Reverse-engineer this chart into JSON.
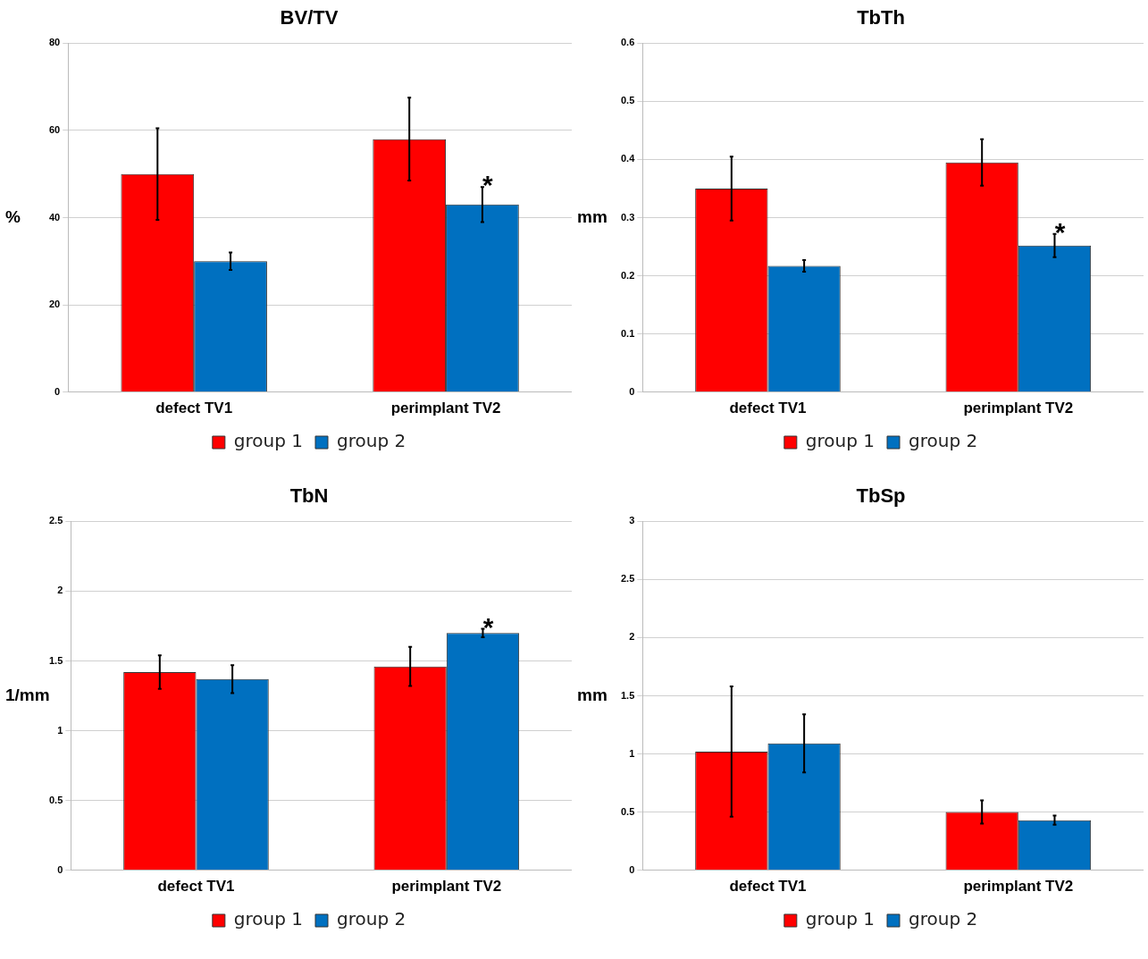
{
  "chart_data": [
    {
      "type": "bar",
      "title": "BV/TV",
      "ylabel": "%",
      "categories": [
        "defect TV1",
        "perimplant TV2"
      ],
      "series": [
        {
          "name": "group 1",
          "color": "#ff0000",
          "values": [
            50,
            58
          ],
          "errors": [
            10.5,
            9.5
          ]
        },
        {
          "name": "group 2",
          "color": "#0070c0",
          "values": [
            30,
            43
          ],
          "errors": [
            2,
            4
          ]
        }
      ],
      "ylim": [
        0,
        80
      ],
      "yticks": [
        0,
        20,
        40,
        60,
        80
      ],
      "grid": "y",
      "legend": "bottom",
      "annotations": [
        {
          "text": "*",
          "x": "perimplant TV2",
          "y": 43
        }
      ]
    },
    {
      "type": "bar",
      "title": "TbTh",
      "ylabel": "mm",
      "categories": [
        "defect TV1",
        "perimplant TV2"
      ],
      "series": [
        {
          "name": "group 1",
          "color": "#ff0000",
          "values": [
            0.35,
            0.395
          ],
          "errors": [
            0.055,
            0.04
          ]
        },
        {
          "name": "group 2",
          "color": "#0070c0",
          "values": [
            0.217,
            0.252
          ],
          "errors": [
            0.01,
            0.02
          ]
        }
      ],
      "ylim": [
        0,
        0.6
      ],
      "yticks": [
        0,
        0.1,
        0.2,
        0.3,
        0.4,
        0.5,
        0.6
      ],
      "grid": "y",
      "legend": "bottom",
      "annotations": [
        {
          "text": "*",
          "x": "perimplant TV2",
          "y": 0.252
        }
      ]
    },
    {
      "type": "bar",
      "title": "TbN",
      "ylabel": "1/mm",
      "categories": [
        "defect TV1",
        "perimplant TV2"
      ],
      "series": [
        {
          "name": "group 1",
          "color": "#ff0000",
          "values": [
            1.42,
            1.46
          ],
          "errors": [
            0.12,
            0.14
          ]
        },
        {
          "name": "group 2",
          "color": "#0070c0",
          "values": [
            1.37,
            1.7
          ],
          "errors": [
            0.1,
            0.03
          ]
        }
      ],
      "ylim": [
        0,
        2.5
      ],
      "yticks": [
        0,
        0.5,
        1,
        1.5,
        2,
        2.5
      ],
      "grid": "y",
      "legend": "bottom",
      "annotations": [
        {
          "text": "*",
          "x": "perimplant TV2",
          "y": 1.7
        }
      ]
    },
    {
      "type": "bar",
      "title": "TbSp",
      "ylabel": "mm",
      "categories": [
        "defect TV1",
        "perimplant TV2"
      ],
      "series": [
        {
          "name": "group 1",
          "color": "#ff0000",
          "values": [
            1.02,
            0.5
          ],
          "errors": [
            0.56,
            0.1
          ]
        },
        {
          "name": "group 2",
          "color": "#0070c0",
          "values": [
            1.09,
            0.43
          ],
          "errors": [
            0.25,
            0.04
          ]
        }
      ],
      "ylim": [
        0,
        3
      ],
      "yticks": [
        0,
        0.5,
        1,
        1.5,
        2,
        2.5,
        3
      ],
      "grid": "y",
      "legend": "bottom"
    }
  ]
}
